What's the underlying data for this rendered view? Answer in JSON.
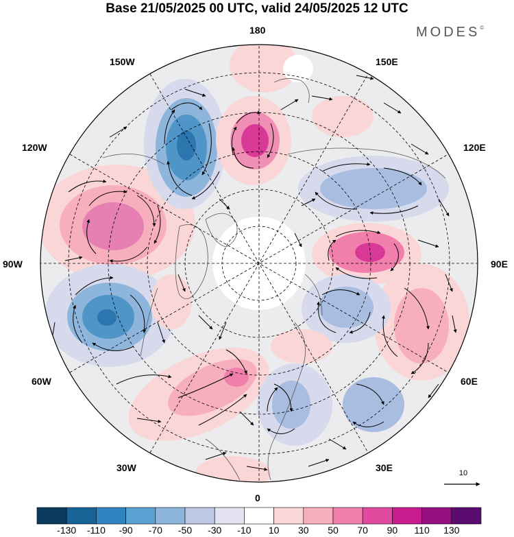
{
  "title": "Base 21/05/2025 00 UTC, valid 24/05/2025 12 UTC",
  "brand": "MODES",
  "brand_mark": "©",
  "longitude_labels": {
    "n180": "180",
    "n150w": "150W",
    "n150e": "150E",
    "n120w": "120W",
    "n120e": "120E",
    "n90w": "90W",
    "n90e": "90E",
    "n60w": "60W",
    "n60e": "60E",
    "n30w": "30W",
    "n30e": "30E",
    "n0": "0"
  },
  "reference_vector": {
    "label": "10"
  },
  "colorbar": {
    "colors": [
      "#0c3b5e",
      "#176496",
      "#2f85c0",
      "#5aa2d2",
      "#8eb5dc",
      "#bfc9e6",
      "#e3e3f2",
      "#ffffff",
      "#fad6d6",
      "#f7afbe",
      "#f07fab",
      "#e14b9f",
      "#c81b8f",
      "#951080",
      "#5a0c6e"
    ],
    "tick_labels": [
      "-130",
      "-110",
      "-90",
      "-70",
      "-50",
      "-30",
      "-10",
      "10",
      "30",
      "50",
      "70",
      "90",
      "110",
      "130"
    ]
  },
  "colors": {
    "land_gray": "#e6e6e6",
    "coast": "#555555",
    "grid": "#000000"
  }
}
